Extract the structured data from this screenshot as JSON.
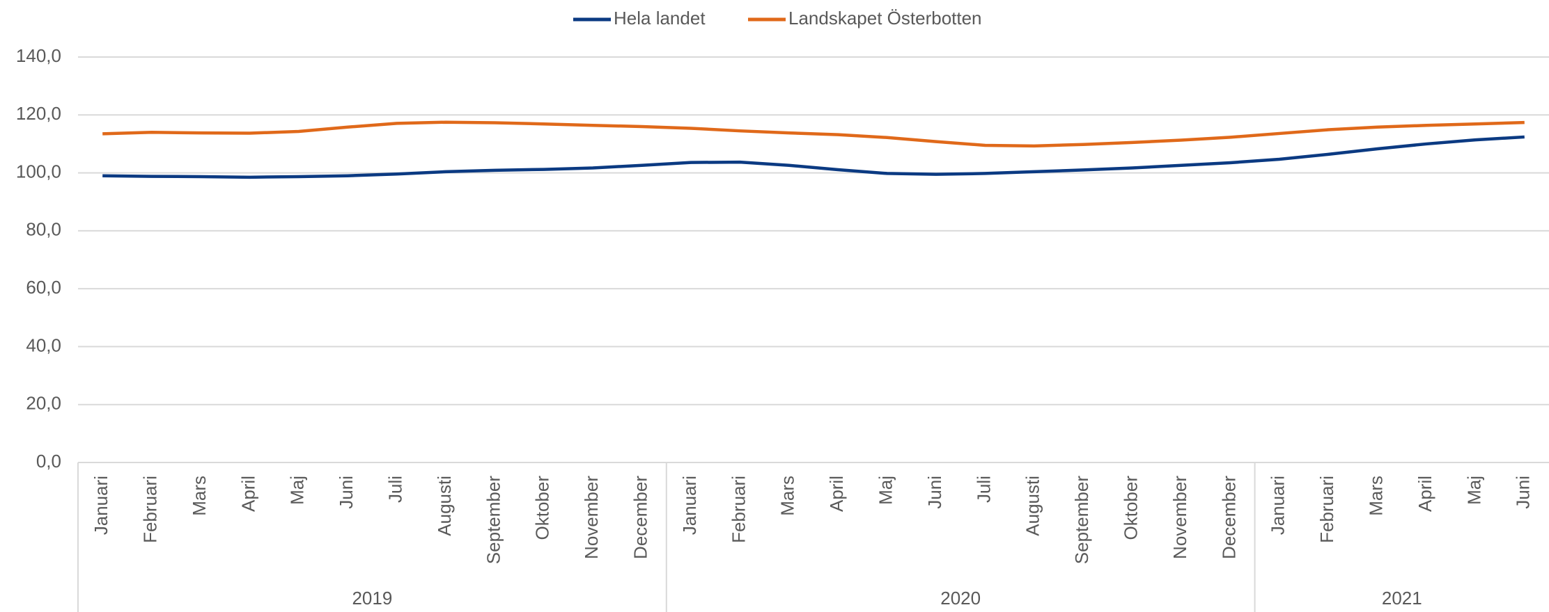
{
  "chart_data": {
    "type": "line",
    "groups": [
      {
        "label": "2019",
        "categories": [
          "Januari",
          "Februari",
          "Mars",
          "April",
          "Maj",
          "Juni",
          "Juli",
          "Augusti",
          "September",
          "Oktober",
          "November",
          "December"
        ]
      },
      {
        "label": "2020",
        "categories": [
          "Januari",
          "Februari",
          "Mars",
          "April",
          "Maj",
          "Juni",
          "Juli",
          "Augusti",
          "September",
          "Oktober",
          "November",
          "December"
        ]
      },
      {
        "label": "2021",
        "categories": [
          "Januari",
          "Februari",
          "Mars",
          "April",
          "Maj",
          "Juni"
        ]
      }
    ],
    "series": [
      {
        "name": "Hela landet",
        "color": "#0b3a82",
        "values": [
          99.0,
          98.8,
          98.7,
          98.5,
          98.7,
          99.0,
          99.6,
          100.4,
          100.9,
          101.2,
          101.7,
          102.6,
          103.6,
          103.7,
          102.6,
          101.1,
          99.8,
          99.5,
          99.8,
          100.4,
          101.0,
          101.7,
          102.6,
          103.5,
          104.7,
          106.4,
          108.3,
          110.0,
          111.4,
          112.4
        ]
      },
      {
        "name": "Landskapet Österbotten",
        "color": "#e0691a",
        "values": [
          113.5,
          114.0,
          113.8,
          113.7,
          114.3,
          115.8,
          117.1,
          117.5,
          117.3,
          116.9,
          116.4,
          116.0,
          115.4,
          114.5,
          113.8,
          113.2,
          112.2,
          110.8,
          109.5,
          109.3,
          109.8,
          110.5,
          111.3,
          112.3,
          113.6,
          114.9,
          115.8,
          116.4,
          116.9,
          117.4
        ]
      }
    ],
    "ylim": [
      0,
      140
    ],
    "yticks": [
      {
        "value": 0,
        "label": "0,0"
      },
      {
        "value": 20,
        "label": "20,0"
      },
      {
        "value": 40,
        "label": "40,0"
      },
      {
        "value": 60,
        "label": "60,0"
      },
      {
        "value": 80,
        "label": "80,0"
      },
      {
        "value": 100,
        "label": "100,0"
      },
      {
        "value": 120,
        "label": "120,0"
      },
      {
        "value": 140,
        "label": "140,0"
      }
    ],
    "grid": true,
    "legend": "top"
  }
}
